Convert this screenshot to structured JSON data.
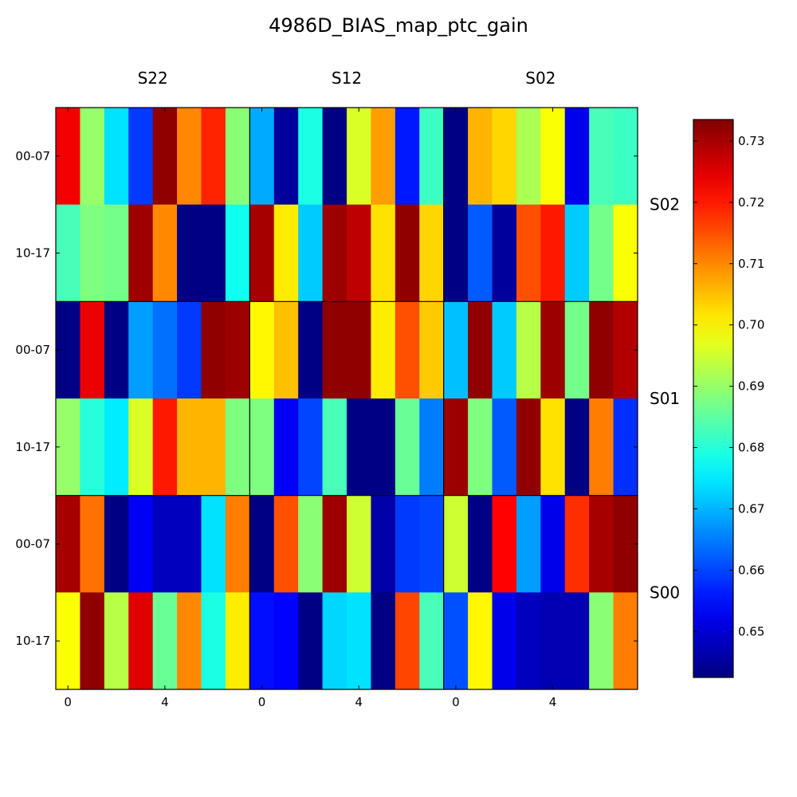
{
  "chart_data": {
    "type": "heatmap",
    "title": "4986D_BIAS_map_ptc_gain",
    "column_labels": [
      "S22",
      "S12",
      "S02"
    ],
    "row_labels": [
      "S02",
      "S01",
      "S00"
    ],
    "y_tick_labels": [
      "00-07",
      "10-17",
      "00-07",
      "10-17",
      "00-07",
      "10-17"
    ],
    "x_tick_labels": [
      "0",
      "4",
      "0",
      "4",
      "0",
      "4"
    ],
    "colormap": "jet",
    "colorbar": {
      "vmin": 0.6425,
      "vmax": 0.7335,
      "ticks": [
        "0.65",
        "0.66",
        "0.67",
        "0.68",
        "0.69",
        "0.70",
        "0.71",
        "0.72",
        "0.73"
      ]
    },
    "values": [
      [
        0.723,
        0.69,
        0.674,
        0.659,
        0.732,
        0.71,
        0.719,
        0.689,
        0.669,
        0.645,
        0.679,
        0.643,
        0.696,
        0.708,
        0.656,
        0.682,
        0.643,
        0.706,
        0.703,
        0.692,
        0.699,
        0.652,
        0.683,
        0.682
      ],
      [
        0.683,
        0.688,
        0.687,
        0.731,
        0.71,
        0.643,
        0.643,
        0.678,
        0.73,
        0.701,
        0.672,
        0.731,
        0.728,
        0.702,
        0.732,
        0.703,
        0.643,
        0.662,
        0.645,
        0.715,
        0.72,
        0.672,
        0.687,
        0.699
      ],
      [
        0.643,
        0.724,
        0.643,
        0.668,
        0.664,
        0.659,
        0.732,
        0.731,
        0.7,
        0.705,
        0.643,
        0.732,
        0.732,
        0.701,
        0.715,
        0.704,
        0.671,
        0.732,
        0.672,
        0.693,
        0.731,
        0.687,
        0.732,
        0.729
      ],
      [
        0.69,
        0.68,
        0.675,
        0.696,
        0.72,
        0.706,
        0.706,
        0.688,
        0.688,
        0.653,
        0.66,
        0.683,
        0.643,
        0.643,
        0.686,
        0.665,
        0.731,
        0.688,
        0.662,
        0.732,
        0.702,
        0.643,
        0.711,
        0.658
      ],
      [
        0.73,
        0.712,
        0.643,
        0.653,
        0.648,
        0.648,
        0.674,
        0.711,
        0.643,
        0.715,
        0.689,
        0.731,
        0.695,
        0.646,
        0.659,
        0.66,
        0.695,
        0.643,
        0.722,
        0.668,
        0.652,
        0.718,
        0.73,
        0.732
      ],
      [
        0.699,
        0.732,
        0.693,
        0.725,
        0.686,
        0.71,
        0.679,
        0.701,
        0.655,
        0.654,
        0.643,
        0.673,
        0.674,
        0.643,
        0.716,
        0.683,
        0.661,
        0.7,
        0.652,
        0.648,
        0.647,
        0.647,
        0.689,
        0.711
      ]
    ]
  }
}
